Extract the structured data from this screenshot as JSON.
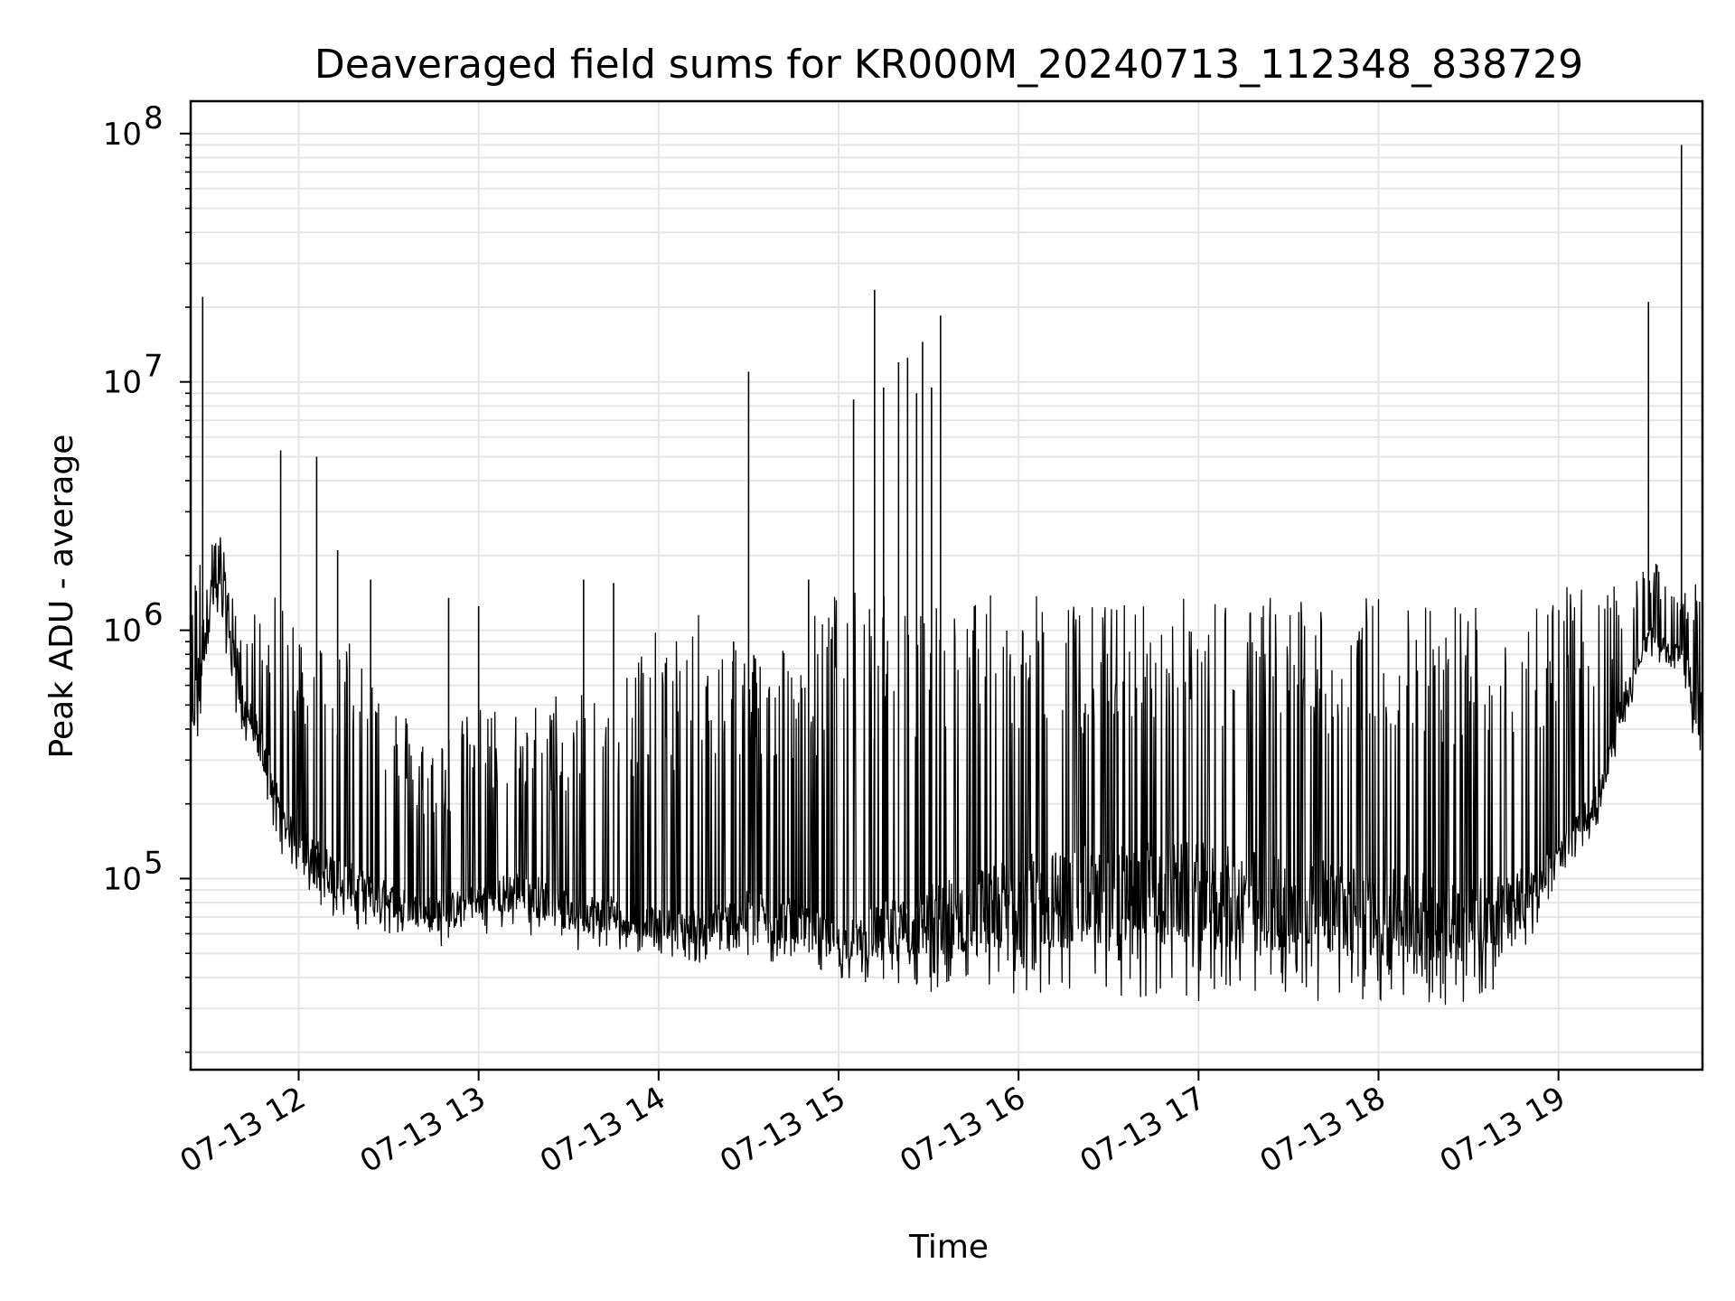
{
  "chart_data": {
    "type": "line",
    "title": "Deaveraged field sums for KR000M_20240713_112348_838729",
    "xlabel": "Time",
    "ylabel": "Peak ADU - average",
    "yscale": "log",
    "ylim": [
      17000,
      135000000
    ],
    "xlim": [
      "2024-07-13 11:24",
      "2024-07-13 19:48"
    ],
    "grid": true,
    "line_color": "#000000",
    "x_ticks": [
      {
        "t": "2024-07-13 12:00",
        "label": "07-13 12"
      },
      {
        "t": "2024-07-13 13:00",
        "label": "07-13 13"
      },
      {
        "t": "2024-07-13 14:00",
        "label": "07-13 14"
      },
      {
        "t": "2024-07-13 15:00",
        "label": "07-13 15"
      },
      {
        "t": "2024-07-13 16:00",
        "label": "07-13 16"
      },
      {
        "t": "2024-07-13 17:00",
        "label": "07-13 17"
      },
      {
        "t": "2024-07-13 18:00",
        "label": "07-13 18"
      },
      {
        "t": "2024-07-13 19:00",
        "label": "07-13 19"
      }
    ],
    "y_ticks": [
      {
        "value": 100000,
        "base": "10",
        "exp": "5"
      },
      {
        "value": 1000000,
        "base": "10",
        "exp": "6"
      },
      {
        "value": 10000000,
        "base": "10",
        "exp": "7"
      },
      {
        "value": 100000000,
        "base": "10",
        "exp": "8"
      }
    ],
    "series": [
      {
        "x": [
          "2024-07-13 11:24",
          "2024-07-13 11:27",
          "2024-07-13 11:30",
          "2024-07-13 11:33",
          "2024-07-13 11:36",
          "2024-07-13 11:40",
          "2024-07-13 11:45",
          "2024-07-13 11:50",
          "2024-07-13 11:55",
          "2024-07-13 12:00",
          "2024-07-13 12:10",
          "2024-07-13 12:20",
          "2024-07-13 12:30",
          "2024-07-13 12:40",
          "2024-07-13 12:50",
          "2024-07-13 13:00",
          "2024-07-13 13:15",
          "2024-07-13 13:30",
          "2024-07-13 13:45",
          "2024-07-13 14:00",
          "2024-07-13 14:15",
          "2024-07-13 14:30",
          "2024-07-13 14:45",
          "2024-07-13 15:00",
          "2024-07-13 15:15",
          "2024-07-13 15:30",
          "2024-07-13 16:00",
          "2024-07-13 16:30",
          "2024-07-13 17:00",
          "2024-07-13 17:30",
          "2024-07-13 18:00",
          "2024-07-13 18:30",
          "2024-07-13 18:45",
          "2024-07-13 19:00",
          "2024-07-13 19:15",
          "2024-07-13 19:20",
          "2024-07-13 19:30",
          "2024-07-13 19:40",
          "2024-07-13 19:48"
        ],
        "low": [
          300000,
          320000,
          900000,
          900000,
          800000,
          400000,
          300000,
          180000,
          120000,
          100000,
          70000,
          60000,
          60000,
          55000,
          50000,
          60000,
          60000,
          50000,
          50000,
          50000,
          45000,
          45000,
          45000,
          40000,
          35000,
          33000,
          33000,
          33000,
          32000,
          32000,
          32000,
          30000,
          40000,
          100000,
          170000,
          350000,
          800000,
          650000,
          250000
        ],
        "base": [
          400000,
          800000,
          1500000,
          1600000,
          1500000,
          600000,
          450000,
          300000,
          180000,
          150000,
          120000,
          100000,
          90000,
          80000,
          80000,
          90000,
          100000,
          80000,
          80000,
          70000,
          70000,
          80000,
          75000,
          60000,
          70000,
          80000,
          100000,
          110000,
          110000,
          100000,
          90000,
          85000,
          90000,
          130000,
          250000,
          500000,
          1000000,
          850000,
          500000
        ],
        "high": [
          1000000,
          2800000,
          2500000,
          2400000,
          2400000,
          900000,
          1200000,
          1500000,
          1200000,
          1200000,
          900000,
          1100000,
          600000,
          400000,
          400000,
          500000,
          500000,
          600000,
          800000,
          1000000,
          1200000,
          900000,
          1000000,
          1500000,
          1400000,
          1400000,
          1400000,
          1300000,
          1400000,
          1400000,
          1400000,
          1400000,
          1400000,
          1500000,
          1500000,
          1500000,
          2000000,
          1500000,
          1600000
        ]
      }
    ],
    "spikes": [
      {
        "t": "2024-07-13 11:28",
        "value": 22000000
      },
      {
        "t": "2024-07-13 11:54",
        "value": 5300000
      },
      {
        "t": "2024-07-13 12:06",
        "value": 5000000
      },
      {
        "t": "2024-07-13 12:13",
        "value": 2100000
      },
      {
        "t": "2024-07-13 12:24",
        "value": 1600000
      },
      {
        "t": "2024-07-13 12:50",
        "value": 1350000
      },
      {
        "t": "2024-07-13 13:00",
        "value": 1250000
      },
      {
        "t": "2024-07-13 13:35",
        "value": 1600000
      },
      {
        "t": "2024-07-13 13:45",
        "value": 1550000
      },
      {
        "t": "2024-07-13 14:25",
        "value": 900000
      },
      {
        "t": "2024-07-13 14:30",
        "value": 11000000
      },
      {
        "t": "2024-07-13 14:50",
        "value": 1600000
      },
      {
        "t": "2024-07-13 15:05",
        "value": 8500000
      },
      {
        "t": "2024-07-13 15:12",
        "value": 23500000
      },
      {
        "t": "2024-07-13 15:15",
        "value": 9500000
      },
      {
        "t": "2024-07-13 15:20",
        "value": 12000000
      },
      {
        "t": "2024-07-13 15:23",
        "value": 12500000
      },
      {
        "t": "2024-07-13 15:26",
        "value": 9000000
      },
      {
        "t": "2024-07-13 15:28",
        "value": 14500000
      },
      {
        "t": "2024-07-13 15:31",
        "value": 9500000
      },
      {
        "t": "2024-07-13 15:34",
        "value": 18500000
      },
      {
        "t": "2024-07-13 19:30",
        "value": 21000000
      },
      {
        "t": "2024-07-13 19:41",
        "value": 90000000
      }
    ]
  }
}
